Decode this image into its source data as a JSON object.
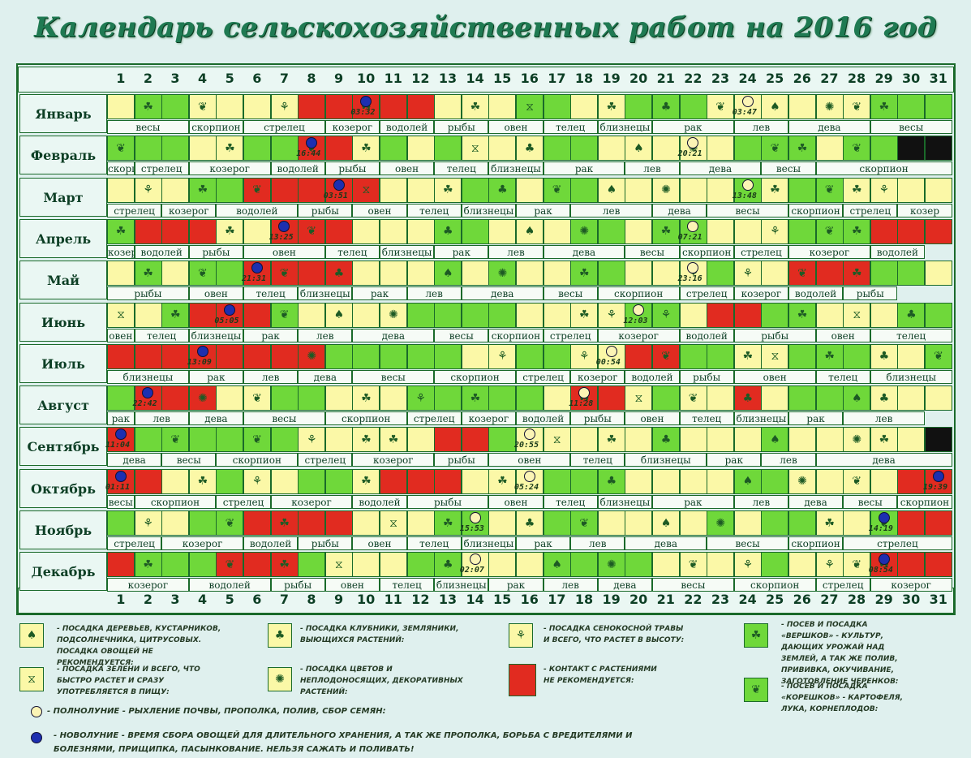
{
  "title": "Календарь сельскохозяйственных работ на 2016  год",
  "days": [
    "1",
    "2",
    "3",
    "4",
    "5",
    "6",
    "7",
    "8",
    "9",
    "10",
    "11",
    "12",
    "13",
    "14",
    "15",
    "16",
    "17",
    "18",
    "19",
    "20",
    "21",
    "22",
    "23",
    "24",
    "25",
    "26",
    "27",
    "28",
    "29",
    "30",
    "31"
  ],
  "months": [
    {
      "name": "Январь",
      "colors": "yggyyyyrrrrryyyggyygggyyyyyyggg",
      "icons": {
        "2": "sprout",
        "4": "leaf",
        "7": "grass",
        "10": "sprout",
        "14": "sprout",
        "16": "hourglass",
        "19": "sprout",
        "21": "berry",
        "23": "leaf",
        "25": "tree",
        "27": "flower",
        "28": "leaf",
        "29": "sprout"
      },
      "moons": [
        {
          "d": 10,
          "t": "new",
          "time": "03:32"
        },
        {
          "d": 24,
          "t": "full",
          "time": "03:47"
        }
      ],
      "zodiac": [
        [
          "весы",
          1,
          3
        ],
        [
          "скорпион",
          4,
          5
        ],
        [
          "стрелец",
          6,
          8
        ],
        [
          "козерог",
          9,
          10
        ],
        [
          "водолей",
          11,
          12
        ],
        [
          "рыбы",
          13,
          14
        ],
        [
          "овен",
          15,
          16
        ],
        [
          "телец",
          17,
          18
        ],
        [
          "близнецы",
          19,
          20
        ],
        [
          "рак",
          21,
          23
        ],
        [
          "лев",
          24,
          25
        ],
        [
          "дева",
          26,
          28
        ],
        [
          "весы",
          29,
          31
        ]
      ]
    },
    {
      "name": "Февраль",
      "colors": "gggyyggrrygygyyyggyyyyygggyggkk",
      "icons": {
        "1": "leaf",
        "5": "sprout",
        "8": "leaf",
        "10": "sprout",
        "14": "hourglass",
        "16": "berry",
        "20": "tree",
        "22": "flower",
        "25": "leaf",
        "26": "sprout",
        "28": "leaf"
      },
      "moons": [
        {
          "d": 8,
          "t": "new",
          "time": "16:44"
        },
        {
          "d": 22,
          "t": "full",
          "time": "20:21"
        }
      ],
      "zodiac": [
        [
          "скорпион",
          1,
          1
        ],
        [
          "стрелец",
          2,
          3
        ],
        [
          "козерог",
          4,
          6
        ],
        [
          "водолей",
          7,
          8
        ],
        [
          "рыбы",
          9,
          10
        ],
        [
          "овен",
          11,
          12
        ],
        [
          "телец",
          13,
          14
        ],
        [
          "близнецы",
          15,
          16
        ],
        [
          "рак",
          17,
          19
        ],
        [
          "лев",
          20,
          21
        ],
        [
          "дева",
          22,
          24
        ],
        [
          "весы",
          25,
          26
        ],
        [
          "скорпион",
          27,
          31
        ]
      ]
    },
    {
      "name": "Март",
      "colors": "yyyggrrrrryyyggyggyyyyygyggyyyyg",
      "icons": {
        "2": "grass",
        "4": "sprout",
        "6": "leaf",
        "10": "hourglass",
        "13": "sprout",
        "15": "berry",
        "17": "leaf",
        "19": "tree",
        "21": "flower",
        "25": "sprout",
        "27": "leaf",
        "28": "sprout",
        "29": "grass"
      },
      "moons": [
        {
          "d": 9,
          "t": "new",
          "time": "03:51"
        },
        {
          "d": 24,
          "t": "full",
          "time": "13:48"
        }
      ],
      "zodiac": [
        [
          "стрелец",
          1,
          2
        ],
        [
          "козерог",
          3,
          4
        ],
        [
          "водолей",
          5,
          7
        ],
        [
          "рыбы",
          8,
          9
        ],
        [
          "овен",
          10,
          11
        ],
        [
          "телец",
          12,
          13
        ],
        [
          "близнецы",
          14,
          15
        ],
        [
          "рак",
          16,
          17
        ],
        [
          "лев",
          18,
          20
        ],
        [
          "дева",
          21,
          22
        ],
        [
          "весы",
          23,
          25
        ],
        [
          "скорпион",
          26,
          27
        ],
        [
          "стрелец",
          28,
          29
        ],
        [
          "козер",
          30,
          31
        ]
      ]
    },
    {
      "name": "Апрель",
      "colors": "grrryyrrryyyggyyyggyggyyygggrrrk",
      "icons": {
        "1": "sprout",
        "5": "sprout",
        "8": "leaf",
        "13": "berry",
        "16": "tree",
        "18": "flower",
        "21": "sprout",
        "25": "grass",
        "27": "leaf",
        "28": "sprout"
      },
      "moons": [
        {
          "d": 7,
          "t": "new",
          "time": "13:25"
        },
        {
          "d": 22,
          "t": "full",
          "time": "07:21"
        }
      ],
      "zodiac": [
        [
          "козер",
          1,
          1
        ],
        [
          "водолей",
          2,
          3
        ],
        [
          "рыбы",
          4,
          5
        ],
        [
          "овен",
          6,
          8
        ],
        [
          "телец",
          9,
          10
        ],
        [
          "близнецы",
          11,
          12
        ],
        [
          "рак",
          13,
          14
        ],
        [
          "лев",
          15,
          16
        ],
        [
          "дева",
          17,
          19
        ],
        [
          "весы",
          20,
          21
        ],
        [
          "скорпион",
          22,
          23
        ],
        [
          "стрелец",
          24,
          25
        ],
        [
          "козерог",
          26,
          28
        ],
        [
          "водолей",
          29,
          30
        ]
      ]
    },
    {
      "name": "Май",
      "colors": "ygyggrrrryyygygyyggyyygyyrrrggyg",
      "icons": {
        "2": "sprout",
        "4": "leaf",
        "7": "leaf",
        "9": "berry",
        "13": "tree",
        "15": "flower",
        "18": "sprout",
        "22": "grass",
        "24": "grass",
        "26": "leaf",
        "28": "sprout"
      },
      "moons": [
        {
          "d": 6,
          "t": "new",
          "time": "21:31"
        },
        {
          "d": 22,
          "t": "full",
          "time": "23:16"
        }
      ],
      "zodiac": [
        [
          "рыбы",
          1,
          3
        ],
        [
          "овен",
          4,
          5
        ],
        [
          "телец",
          6,
          7
        ],
        [
          "близнецы",
          8,
          9
        ],
        [
          "рак",
          10,
          11
        ],
        [
          "лев",
          12,
          13
        ],
        [
          "дева",
          14,
          16
        ],
        [
          "весы",
          17,
          18
        ],
        [
          "скорпион",
          19,
          21
        ],
        [
          "стрелец",
          22,
          23
        ],
        [
          "козерог",
          24,
          25
        ],
        [
          "водолей",
          26,
          27
        ],
        [
          "рыбы",
          28,
          29
        ]
      ]
    },
    {
      "name": "Июнь",
      "colors": "yygrrrgyyyyggggyyyyggyrrggyyyggk",
      "icons": {
        "1": "hourglass",
        "3": "sprout",
        "7": "leaf",
        "9": "tree",
        "11": "flower",
        "18": "sprout",
        "19": "grass",
        "21": "grass",
        "26": "sprout",
        "28": "hourglass",
        "30": "berry"
      },
      "moons": [
        {
          "d": 5,
          "t": "new",
          "time": "05:05"
        },
        {
          "d": 20,
          "t": "full",
          "time": "12:03"
        }
      ],
      "zodiac": [
        [
          "овен",
          1,
          1
        ],
        [
          "телец",
          2,
          3
        ],
        [
          "близнецы",
          4,
          5
        ],
        [
          "рак",
          6,
          7
        ],
        [
          "лев",
          8,
          9
        ],
        [
          "дева",
          10,
          12
        ],
        [
          "весы",
          13,
          14
        ],
        [
          "скорпион",
          15,
          16
        ],
        [
          "стрелец",
          17,
          18
        ],
        [
          "козерог",
          19,
          21
        ],
        [
          "водолей",
          22,
          23
        ],
        [
          "рыбы",
          24,
          26
        ],
        [
          "овен",
          27,
          28
        ],
        [
          "телец",
          29,
          31
        ]
      ]
    },
    {
      "name": "Июль",
      "colors": "rrrrrrrrgggggyyggyyrrggyygggyygg",
      "icons": {
        "8": "flower",
        "15": "grass",
        "18": "grass",
        "21": "leaf",
        "24": "sprout",
        "25": "hourglass",
        "27": "sprout",
        "29": "berry",
        "31": "leaf"
      },
      "moons": [
        {
          "d": 4,
          "t": "new",
          "time": "13:09"
        },
        {
          "d": 19,
          "t": "full",
          "time": "00:54"
        }
      ],
      "zodiac": [
        [
          "близнецы",
          1,
          3
        ],
        [
          "рак",
          4,
          5
        ],
        [
          "лев",
          6,
          7
        ],
        [
          "дева",
          8,
          9
        ],
        [
          "весы",
          10,
          12
        ],
        [
          "скорпион",
          13,
          15
        ],
        [
          "стрелец",
          16,
          17
        ],
        [
          "козерог",
          18,
          19
        ],
        [
          "водолей",
          20,
          21
        ],
        [
          "рыбы",
          22,
          23
        ],
        [
          "овен",
          24,
          26
        ],
        [
          "телец",
          27,
          28
        ],
        [
          "близнецы",
          29,
          31
        ]
      ]
    },
    {
      "name": "Август",
      "colors": "grrryyggyyygggggyrrygyyrygggyyyy",
      "icons": {
        "4": "flower",
        "6": "leaf",
        "10": "sprout",
        "12": "grass",
        "14": "sprout",
        "18": "sprout",
        "20": "hourglass",
        "22": "leaf",
        "24": "berry",
        "28": "tree",
        "29": "berry"
      },
      "moons": [
        {
          "d": 2,
          "t": "new",
          "time": "22:42"
        },
        {
          "d": 18,
          "t": "full",
          "time": "11:28"
        }
      ],
      "zodiac": [
        [
          "рак",
          1,
          1
        ],
        [
          "лев",
          2,
          3
        ],
        [
          "дева",
          4,
          5
        ],
        [
          "весы",
          6,
          8
        ],
        [
          "скорпион",
          9,
          11
        ],
        [
          "стрелец",
          12,
          13
        ],
        [
          "козерог",
          14,
          15
        ],
        [
          "водолей",
          16,
          17
        ],
        [
          "рыбы",
          18,
          19
        ],
        [
          "овен",
          20,
          21
        ],
        [
          "телец",
          22,
          23
        ],
        [
          "близнецы",
          24,
          25
        ],
        [
          "рак",
          26,
          27
        ],
        [
          "лев",
          28,
          30
        ]
      ]
    },
    {
      "name": "Сентябрь",
      "colors": "rggggggyyyyyrrgyyyyygyyygyyyyyk",
      "icons": {
        "3": "leaf",
        "6": "leaf",
        "8": "grass",
        "10": "sprout",
        "11": "sprout",
        "17": "hourglass",
        "19": "sprout",
        "21": "berry",
        "25": "tree",
        "28": "flower",
        "29": "sprout"
      },
      "moons": [
        {
          "d": 1,
          "t": "new",
          "time": "11:04"
        },
        {
          "d": 16,
          "t": "full",
          "time": "20:55"
        }
      ],
      "zodiac": [
        [
          "дева",
          1,
          2
        ],
        [
          "весы",
          3,
          4
        ],
        [
          "скорпион",
          5,
          7
        ],
        [
          "стрелец",
          8,
          9
        ],
        [
          "козерог",
          10,
          12
        ],
        [
          "рыбы",
          13,
          14
        ],
        [
          "овен",
          15,
          17
        ],
        [
          "телец",
          18,
          19
        ],
        [
          "близнецы",
          20,
          22
        ],
        [
          "рак",
          23,
          24
        ],
        [
          "лев",
          25,
          26
        ],
        [
          "дева",
          27,
          31
        ]
      ]
    },
    {
      "name": "Октябрь",
      "colors": "rryygyyggyrrryyygggyyyyggyyyyrrr",
      "icons": {
        "4": "sprout",
        "6": "grass",
        "10": "sprout",
        "15": "sprout",
        "19": "berry",
        "24": "tree",
        "26": "flower",
        "28": "leaf"
      },
      "moons": [
        {
          "d": 1,
          "t": "new",
          "time": "01:11"
        },
        {
          "d": 16,
          "t": "full",
          "time": "05:24"
        },
        {
          "d": 31,
          "t": "new",
          "time": "19:39"
        }
      ],
      "zodiac": [
        [
          "весы",
          1,
          1
        ],
        [
          "скорпион",
          2,
          4
        ],
        [
          "стрелец",
          5,
          6
        ],
        [
          "козерог",
          7,
          9
        ],
        [
          "водолей",
          10,
          11
        ],
        [
          "рыбы",
          12,
          14
        ],
        [
          "овен",
          15,
          16
        ],
        [
          "телец",
          17,
          18
        ],
        [
          "близнецы",
          19,
          20
        ],
        [
          "рак",
          21,
          23
        ],
        [
          "лев",
          24,
          25
        ],
        [
          "дева",
          26,
          27
        ],
        [
          "весы",
          28,
          29
        ],
        [
          "скорпион",
          30,
          31
        ]
      ]
    },
    {
      "name": "Ноябрь",
      "colors": "gyyggrrrryyyggyyggyyyygyggyygrrk",
      "icons": {
        "2": "grass",
        "5": "leaf",
        "7": "sprout",
        "11": "hourglass",
        "13": "sprout",
        "16": "berry",
        "18": "leaf",
        "21": "tree",
        "23": "flower",
        "27": "sprout",
        "29": "leaf"
      },
      "moons": [
        {
          "d": 14,
          "t": "full",
          "time": "15:53"
        },
        {
          "d": 29,
          "t": "new",
          "time": "14:19"
        }
      ],
      "zodiac": [
        [
          "стрелец",
          1,
          2
        ],
        [
          "козерог",
          3,
          5
        ],
        [
          "водолей",
          6,
          7
        ],
        [
          "рыбы",
          8,
          9
        ],
        [
          "овен",
          10,
          11
        ],
        [
          "телец",
          12,
          13
        ],
        [
          "близнецы",
          14,
          15
        ],
        [
          "рак",
          16,
          17
        ],
        [
          "лев",
          18,
          19
        ],
        [
          "дева",
          20,
          22
        ],
        [
          "весы",
          23,
          25
        ],
        [
          "скорпион",
          26,
          27
        ],
        [
          "стрелец",
          28,
          31
        ]
      ]
    },
    {
      "name": "Декабрь",
      "colors": "rgggrrrgyyyggyyyggggyyyygyyyrrrr",
      "icons": {
        "2": "sprout",
        "5": "leaf",
        "7": "sprout",
        "9": "hourglass",
        "13": "berry",
        "17": "tree",
        "19": "flower",
        "22": "leaf",
        "24": "grass",
        "27": "grass",
        "28": "leaf",
        "29": "sprout"
      },
      "moons": [
        {
          "d": 14,
          "t": "full",
          "time": "02:07"
        },
        {
          "d": 29,
          "t": "new",
          "time": "08:54"
        }
      ],
      "zodiac": [
        [
          "козерог",
          1,
          3
        ],
        [
          "водолей",
          4,
          6
        ],
        [
          "рыбы",
          7,
          8
        ],
        [
          "овен",
          9,
          10
        ],
        [
          "телец",
          11,
          12
        ],
        [
          "близнецы",
          13,
          14
        ],
        [
          "рак",
          15,
          16
        ],
        [
          "лев",
          17,
          18
        ],
        [
          "дева",
          19,
          20
        ],
        [
          "весы",
          21,
          23
        ],
        [
          "скорпион",
          24,
          26
        ],
        [
          "стрелец",
          27,
          28
        ],
        [
          "козерог",
          29,
          31
        ]
      ]
    }
  ],
  "legend": {
    "tree": "- посадка деревьев, кустарников, подсолнечника, цитрусовых. посадка овощей не рекомендуется:",
    "hourglass": "- посадка зелени и всего, что быстро растет и сразу употребляется в пищу:",
    "berry": "- посадка клубники, земляники, выющихся растений:",
    "flower": "- посадка цветов и неплодоносящих, декоративных растений:",
    "grass": "- посадка сенокосной травы и всего, что растет в высоту:",
    "red": "- контакт с растениями не рекомендуется:",
    "sprout": "- посев и посадка «вершков» - культур, дающих урожай над землей, а так же полив, прививка, окучивание, заготовление черенков:",
    "leaf": "- посев и посадка «корешков» - картофеля, лука, корнеплодов:",
    "full_moon": "- полнолуние - рыхление почвы,  прополка, полив, сбор семян:",
    "new_moon": "- новолуние - время сбора овощей для длительного хранения, а так же прополка, борьба с вредителями и болезнями, прищипка, пасынкование. нельзя сажать и поливать!"
  },
  "colors": {
    "green": "#6fd83a",
    "yellow": "#fbf8a7",
    "red": "#e12b20",
    "new_moon": "#1d2fb0",
    "full_moon": "#fbf4b5"
  }
}
